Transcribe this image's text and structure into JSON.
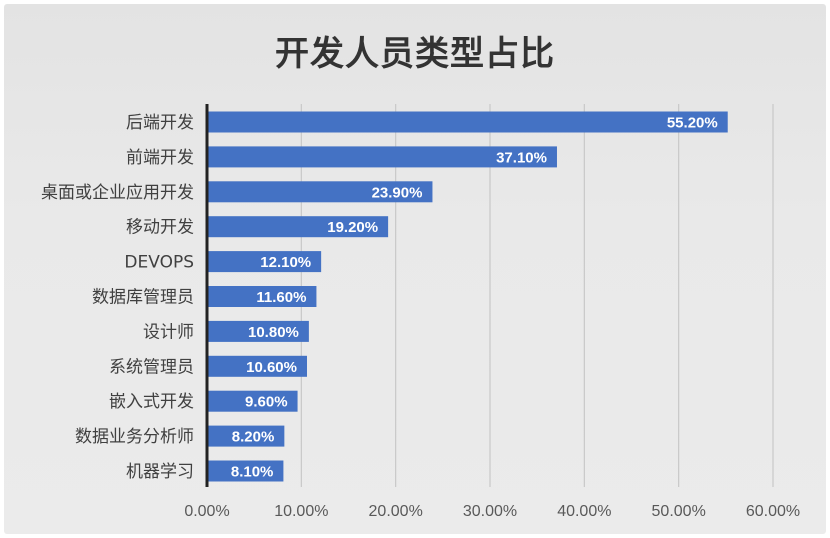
{
  "chart_data": {
    "type": "bar",
    "orientation": "horizontal",
    "title": "开发人员类型占比",
    "categories": [
      "后端开发",
      "前端开发",
      "桌面或企业应用开发",
      "移动开发",
      "DEVOPS",
      "数据库管理员",
      "设计师",
      "系统管理员",
      "嵌入式开发",
      "数据业务分析师",
      "机器学习"
    ],
    "values": [
      55.2,
      37.1,
      23.9,
      19.2,
      12.1,
      11.6,
      10.8,
      10.6,
      9.6,
      8.2,
      8.1
    ],
    "value_labels": [
      "55.20%",
      "37.10%",
      "23.90%",
      "19.20%",
      "12.10%",
      "11.60%",
      "10.80%",
      "10.60%",
      "9.60%",
      "8.20%",
      "8.10%"
    ],
    "x_ticks": [
      "0.00%",
      "10.00%",
      "20.00%",
      "30.00%",
      "40.00%",
      "50.00%",
      "60.00%"
    ],
    "xlim": [
      0,
      60
    ],
    "xlabel": "",
    "ylabel": "",
    "grid": "vertical",
    "legend": "none",
    "colors": {
      "bar": "#4472c4",
      "grid": "#c8c8c8",
      "axis": "#222222",
      "background": "#e8e8e8"
    }
  }
}
